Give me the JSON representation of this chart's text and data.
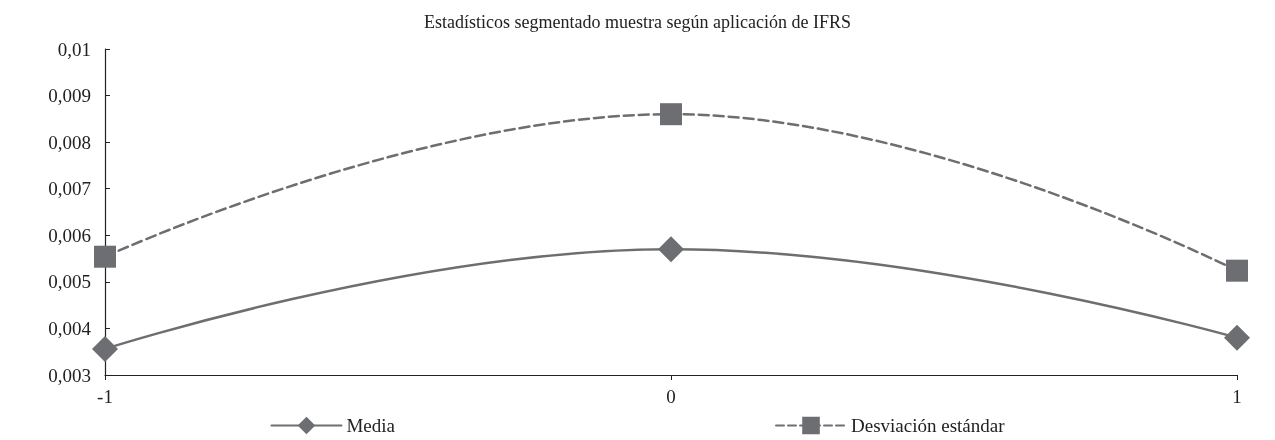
{
  "chart_data": {
    "type": "line",
    "title": "Estadísticos segmentado muestra según aplicación de IFRS",
    "x": [
      -1,
      0,
      1
    ],
    "xlim": [
      -1,
      1
    ],
    "xticks": [
      -1,
      0,
      1
    ],
    "ylim": [
      0.003,
      0.01
    ],
    "yticks": [
      {
        "value": 0.003,
        "label": "0,003"
      },
      {
        "value": 0.004,
        "label": "0,004"
      },
      {
        "value": 0.005,
        "label": "0,005"
      },
      {
        "value": 0.006,
        "label": "0,006"
      },
      {
        "value": 0.007,
        "label": "0,007"
      },
      {
        "value": 0.008,
        "label": "0,008"
      },
      {
        "value": 0.009,
        "label": "0,009"
      },
      {
        "value": 0.01,
        "label": "0,01"
      }
    ],
    "series": [
      {
        "name": "Media",
        "color": "#6d6e72",
        "values": [
          0.00356,
          0.0057,
          0.0038
        ],
        "marker": "diamond",
        "line_style": "solid"
      },
      {
        "name": "Desviación estándar",
        "color": "#6d6e72",
        "values": [
          0.00554,
          0.0086,
          0.00524
        ],
        "marker": "square",
        "line_style": "dashed"
      }
    ],
    "grid": false,
    "legend": "bottom"
  }
}
